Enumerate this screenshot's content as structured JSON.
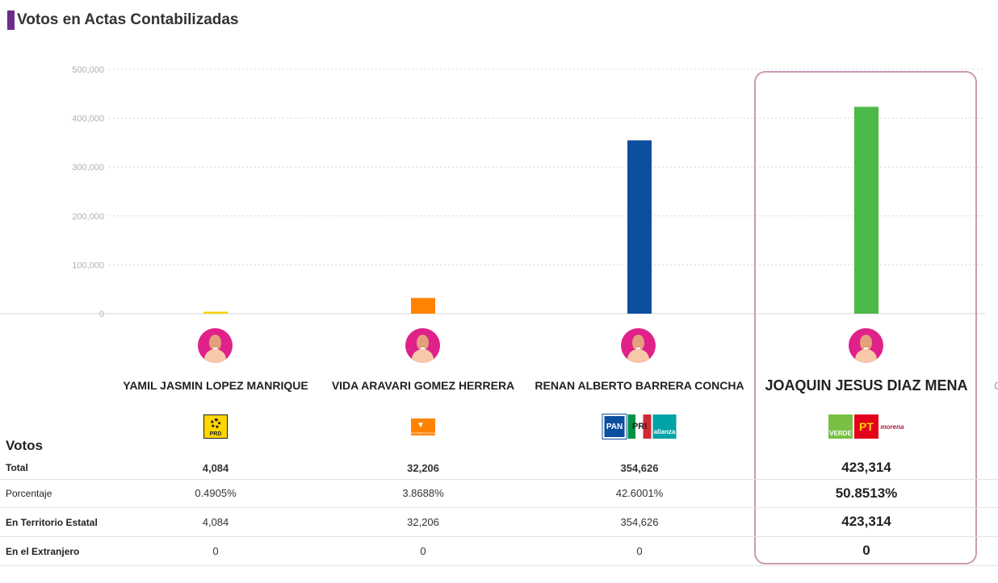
{
  "title": "Votos en Actas Contabilizadas",
  "chart_data": {
    "type": "bar",
    "ylim": [
      0,
      500000
    ],
    "yticks": [
      0,
      100000,
      200000,
      300000,
      400000,
      500000
    ],
    "ytick_labels": [
      "0",
      "100,000",
      "200,000",
      "300,000",
      "400,000",
      "500,000"
    ],
    "categories": [
      "YAMIL JASMIN LOPEZ MANRIQUE",
      "VIDA ARAVARI GOMEZ HERRERA",
      "RENAN ALBERTO BARRERA CONCHA",
      "JOAQUIN JESUS DIAZ MENA"
    ],
    "values": [
      4084,
      32206,
      354626,
      423314
    ],
    "colors": [
      "#f6d200",
      "#ff8300",
      "#0d4f9f",
      "#4cb848"
    ]
  },
  "candidates": [
    {
      "name": "YAMIL JASMIN LOPEZ MANRIQUE",
      "party": "PRD",
      "total": "4,084",
      "porcentaje": "0.4905%",
      "territorio": "4,084",
      "extranjero": "0"
    },
    {
      "name": "VIDA ARAVARI GOMEZ HERRERA",
      "party": "MOVIMIENTO CIUDADANO",
      "total": "32,206",
      "porcentaje": "3.8688%",
      "territorio": "32,206",
      "extranjero": "0"
    },
    {
      "name": "RENAN ALBERTO BARRERA CONCHA",
      "party": "PAN PRI alianza",
      "total": "354,626",
      "porcentaje": "42.6001%",
      "territorio": "354,626",
      "extranjero": "0"
    },
    {
      "name": "JOAQUIN JESUS DIAZ MENA",
      "party": "VERDE PT morena",
      "total": "423,314",
      "porcentaje": "50.8513%",
      "territorio": "423,314",
      "extranjero": "0"
    }
  ],
  "logos": {
    "prd": "PRD",
    "mc": "MOVIMIENTO CIUDADANO",
    "pan": "PAN",
    "pri": "PRI",
    "alianza": "alianza",
    "verde": "VERDE",
    "pt": "PT",
    "morena": "morena"
  },
  "table": {
    "heading": "Votos",
    "rows": [
      "Total",
      "Porcentaje",
      "En Territorio Estatal",
      "En el Extranjero"
    ]
  }
}
